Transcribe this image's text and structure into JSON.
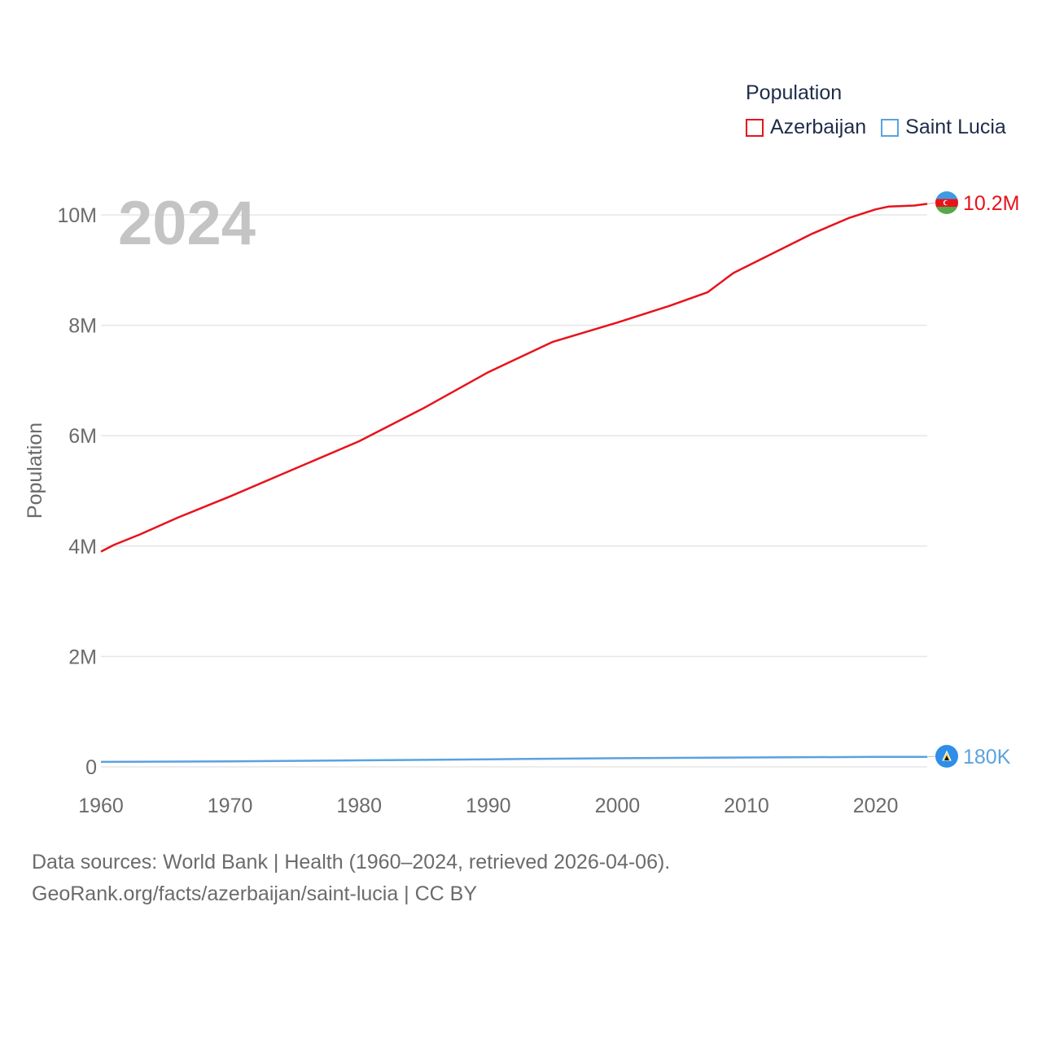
{
  "legend": {
    "title": "Population",
    "items": [
      {
        "label": "Azerbaijan",
        "color": "#e8121b"
      },
      {
        "label": "Saint Lucia",
        "color": "#5aa2e0"
      }
    ]
  },
  "year_label": "2024",
  "footer": {
    "line1": "Data sources: World Bank | Health (1960–2024, retrieved 2026-04-06).",
    "line2": "GeoRank.org/facts/azerbaijan/saint-lucia | CC BY"
  },
  "chart_data": {
    "type": "line",
    "title": "",
    "xlabel": "",
    "ylabel": "Population",
    "xlim": [
      1960,
      2024
    ],
    "ylim": [
      0,
      10000000
    ],
    "x_ticks": [
      1960,
      1970,
      1980,
      1990,
      2000,
      2010,
      2020
    ],
    "x_tick_labels": [
      "1960",
      "1970",
      "1980",
      "1990",
      "2000",
      "2010",
      "2020"
    ],
    "y_ticks": [
      0,
      2000000,
      4000000,
      6000000,
      8000000,
      10000000
    ],
    "y_tick_labels": [
      "0",
      "2M",
      "4M",
      "6M",
      "8M",
      "10M"
    ],
    "grid": true,
    "series": [
      {
        "name": "Azerbaijan",
        "color": "#e8121b",
        "end_label": "10.2M",
        "points": [
          [
            1960,
            3900000
          ],
          [
            1961,
            4020000
          ],
          [
            1963,
            4210000
          ],
          [
            1966,
            4520000
          ],
          [
            1970,
            4900000
          ],
          [
            1975,
            5400000
          ],
          [
            1980,
            5900000
          ],
          [
            1985,
            6500000
          ],
          [
            1990,
            7150000
          ],
          [
            1995,
            7700000
          ],
          [
            2000,
            8050000
          ],
          [
            2004,
            8350000
          ],
          [
            2007,
            8600000
          ],
          [
            2009,
            8950000
          ],
          [
            2012,
            9300000
          ],
          [
            2015,
            9650000
          ],
          [
            2018,
            9950000
          ],
          [
            2020,
            10100000
          ],
          [
            2021,
            10150000
          ],
          [
            2023,
            10170000
          ],
          [
            2024,
            10200000
          ]
        ]
      },
      {
        "name": "Saint Lucia",
        "color": "#5aa2e0",
        "end_label": "180K",
        "points": [
          [
            1960,
            90000
          ],
          [
            1970,
            101000
          ],
          [
            1980,
            118000
          ],
          [
            1990,
            137000
          ],
          [
            2000,
            156000
          ],
          [
            2010,
            170000
          ],
          [
            2020,
            180000
          ],
          [
            2024,
            180000
          ]
        ]
      }
    ]
  }
}
